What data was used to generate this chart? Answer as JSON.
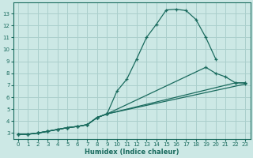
{
  "xlabel": "Humidex (Indice chaleur)",
  "bg_color": "#cce8e5",
  "grid_color": "#aacfcc",
  "line_color": "#1a6b5e",
  "xlim": [
    -0.5,
    23.5
  ],
  "ylim": [
    2.5,
    13.9
  ],
  "xticks": [
    0,
    1,
    2,
    3,
    4,
    5,
    6,
    7,
    8,
    9,
    10,
    11,
    12,
    13,
    14,
    15,
    16,
    17,
    18,
    19,
    20,
    21,
    22,
    23
  ],
  "yticks": [
    3,
    4,
    5,
    6,
    7,
    8,
    9,
    10,
    11,
    12,
    13
  ],
  "line1_x": [
    0,
    1,
    2,
    3,
    4,
    5,
    6,
    7,
    8,
    9,
    10,
    11,
    12,
    13,
    14,
    15,
    16,
    17,
    18,
    19,
    20
  ],
  "line1_y": [
    2.9,
    2.9,
    3.0,
    3.15,
    3.3,
    3.45,
    3.55,
    3.7,
    4.3,
    4.6,
    6.5,
    7.5,
    9.2,
    11.0,
    12.1,
    13.3,
    13.35,
    13.25,
    12.5,
    11.0,
    9.2
  ],
  "line2_x": [
    0,
    1,
    2,
    3,
    4,
    5,
    6,
    7,
    8,
    9,
    19,
    20,
    21,
    22,
    23
  ],
  "line2_y": [
    2.9,
    2.9,
    3.0,
    3.15,
    3.3,
    3.45,
    3.55,
    3.7,
    4.3,
    4.6,
    8.5,
    8.0,
    7.7,
    7.2,
    7.2
  ],
  "line3_x": [
    0,
    1,
    2,
    3,
    4,
    5,
    6,
    7,
    8,
    9,
    22,
    23
  ],
  "line3_y": [
    2.9,
    2.9,
    3.0,
    3.15,
    3.3,
    3.45,
    3.55,
    3.7,
    4.3,
    4.6,
    7.2,
    7.2
  ],
  "line4_x": [
    0,
    1,
    2,
    3,
    4,
    5,
    6,
    7,
    8,
    9,
    23
  ],
  "line4_y": [
    2.9,
    2.9,
    3.0,
    3.15,
    3.3,
    3.45,
    3.55,
    3.7,
    4.3,
    4.6,
    7.1
  ]
}
